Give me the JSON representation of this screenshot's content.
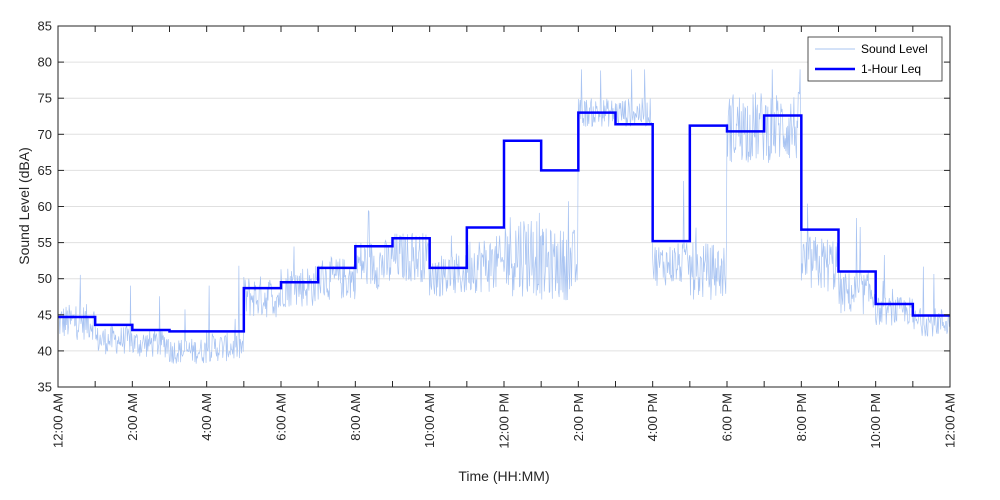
{
  "chart_data": {
    "type": "line",
    "title": "",
    "xlabel": "Time (HH:MM)",
    "ylabel": "Sound Level (dBA)",
    "ylim": [
      35,
      85
    ],
    "yticks": [
      35,
      40,
      45,
      50,
      55,
      60,
      65,
      70,
      75,
      80,
      85
    ],
    "xlim_hours": [
      0,
      24
    ],
    "xtick_labels": [
      "12:00 AM",
      "2:00 AM",
      "4:00 AM",
      "6:00 AM",
      "8:00 AM",
      "10:00 AM",
      "12:00 PM",
      "2:00 PM",
      "4:00 PM",
      "6:00 PM",
      "8:00 PM",
      "10:00 PM",
      "12:00 AM"
    ],
    "grid": "horizontal",
    "legend": "top-right",
    "series": [
      {
        "name": "Sound Level",
        "color": "#a9c4f2",
        "style": "thin-noisy-line",
        "hourly_base": [
          44,
          41.5,
          41,
          40,
          40.5,
          47.5,
          49,
          50,
          52,
          53,
          50.5,
          52,
          53.5,
          52,
          73,
          73,
          52,
          51,
          71,
          71,
          52,
          48,
          45.5,
          44
        ],
        "hourly_spread": [
          2.5,
          2,
          2,
          1.8,
          2,
          3,
          3,
          3,
          3.5,
          3.5,
          3,
          4,
          6,
          5,
          2,
          2,
          3,
          4,
          5,
          5,
          4,
          3,
          2,
          2
        ]
      },
      {
        "name": "1-Hour Leq",
        "color": "#0000ff",
        "style": "step",
        "hours": [
          0,
          1,
          2,
          3,
          4,
          5,
          6,
          7,
          8,
          9,
          10,
          11,
          12,
          13,
          14,
          15,
          16,
          17,
          18,
          19,
          20,
          21,
          22,
          23
        ],
        "values": [
          44.7,
          43.6,
          42.9,
          42.7,
          42.7,
          48.7,
          49.5,
          51.5,
          54.5,
          55.6,
          51.5,
          57.1,
          69.1,
          65,
          73,
          71.4,
          55.2,
          71.2,
          70.4,
          72.6,
          56.8,
          51,
          46.5,
          44.9
        ]
      }
    ]
  }
}
